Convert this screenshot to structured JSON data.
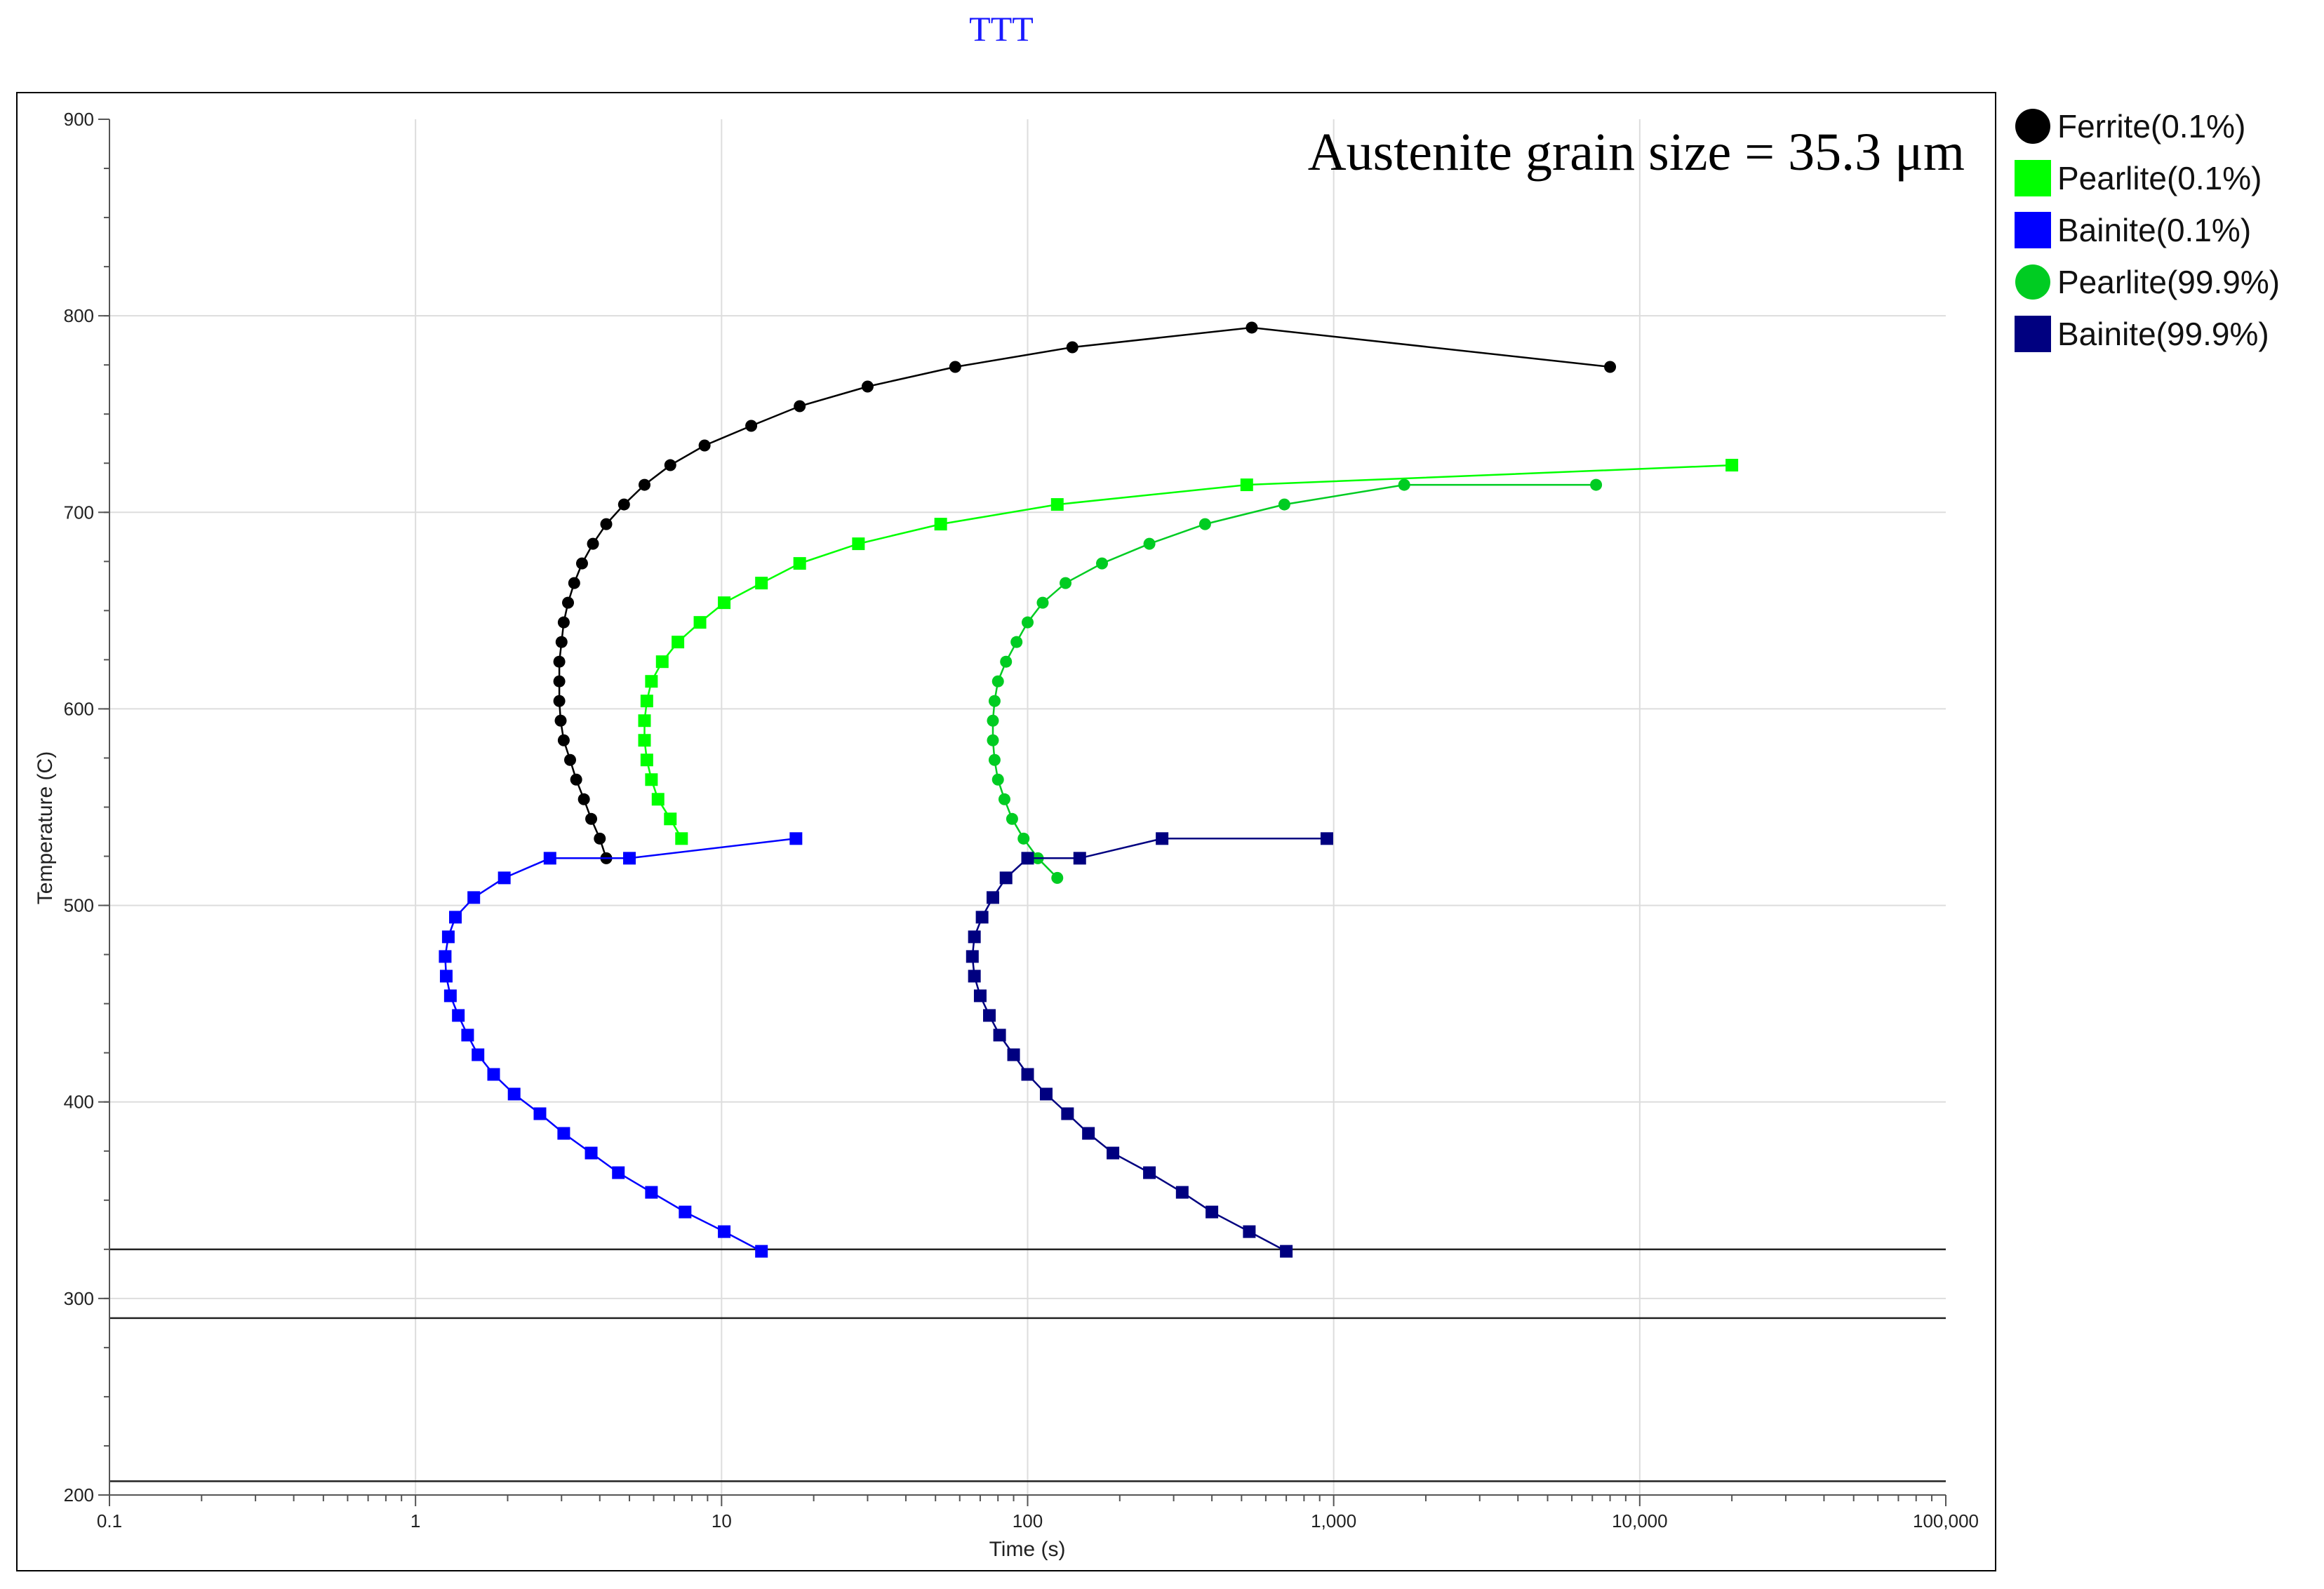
{
  "chart_data": {
    "type": "line",
    "title": "TTT",
    "title_color": "#1a1aff",
    "annotation": "Austenite grain size = 35.3 μm",
    "xlabel": "Time (s)",
    "ylabel": "Temperature (C)",
    "x_scale": "log",
    "xlim": [
      0.1,
      100000
    ],
    "ylim": [
      200,
      900
    ],
    "x_ticks": [
      0.1,
      1,
      10,
      100,
      1000,
      10000,
      100000
    ],
    "x_tick_labels": [
      "0.1",
      "1",
      "10",
      "100",
      "1,000",
      "10,000",
      "100,000"
    ],
    "y_ticks": [
      200,
      300,
      400,
      500,
      600,
      700,
      800,
      900
    ],
    "y_tick_labels": [
      "200",
      "300",
      "400",
      "500",
      "600",
      "700",
      "800",
      "900"
    ],
    "grid": true,
    "legend_position": "outside-right",
    "horizontal_lines": [
      325,
      290,
      207
    ],
    "series": [
      {
        "name": "Ferrite(0.1%)",
        "color": "#000000",
        "marker": "circle",
        "x": [
          4.2,
          4.0,
          3.75,
          3.55,
          3.35,
          3.2,
          3.05,
          2.98,
          2.95,
          2.95,
          2.95,
          3.0,
          3.05,
          3.15,
          3.3,
          3.5,
          3.8,
          4.2,
          4.8,
          5.6,
          6.8,
          8.8,
          12.5,
          18,
          30,
          58,
          140,
          540,
          8000
        ],
        "y": [
          524,
          534,
          544,
          554,
          564,
          574,
          584,
          594,
          604,
          614,
          624,
          634,
          644,
          654,
          664,
          674,
          684,
          694,
          704,
          714,
          724,
          734,
          744,
          754,
          764,
          774,
          784,
          794,
          774
        ]
      },
      {
        "name": "Pearlite(0.1%)",
        "color": "#00ff00",
        "marker": "square",
        "x": [
          7.4,
          6.8,
          6.2,
          5.9,
          5.7,
          5.6,
          5.6,
          5.7,
          5.9,
          6.4,
          7.2,
          8.5,
          10.2,
          13.5,
          18,
          28,
          52,
          125,
          520,
          20000
        ],
        "y": [
          534,
          544,
          554,
          564,
          574,
          584,
          594,
          604,
          614,
          624,
          634,
          644,
          654,
          664,
          674,
          684,
          694,
          704,
          714,
          724
        ]
      },
      {
        "name": "Bainite(0.1%)",
        "color": "#0000ff",
        "marker": "square",
        "x": [
          13.5,
          10.2,
          7.6,
          5.9,
          4.6,
          3.75,
          3.05,
          2.55,
          2.1,
          1.8,
          1.6,
          1.48,
          1.38,
          1.3,
          1.26,
          1.25,
          1.28,
          1.35,
          1.55,
          1.95,
          2.75,
          5.0,
          17.5
        ],
        "y": [
          324,
          334,
          344,
          354,
          364,
          374,
          384,
          394,
          404,
          414,
          424,
          434,
          444,
          454,
          464,
          474,
          484,
          494,
          504,
          514,
          524,
          524,
          534
        ]
      },
      {
        "name": "Pearlite(99.9%)",
        "color": "#00cc22",
        "marker": "circle",
        "x": [
          125,
          108,
          97,
          89,
          84,
          80,
          78,
          77,
          77,
          78,
          80,
          85,
          92,
          100,
          112,
          133,
          175,
          250,
          380,
          690,
          1700,
          7200
        ],
        "y": [
          514,
          524,
          534,
          544,
          554,
          564,
          574,
          584,
          594,
          604,
          614,
          624,
          634,
          644,
          654,
          664,
          674,
          684,
          694,
          704,
          714,
          714
        ]
      },
      {
        "name": "Bainite(99.9%)",
        "color": "#000080",
        "marker": "square",
        "x": [
          700,
          530,
          400,
          320,
          250,
          190,
          158,
          135,
          115,
          100,
          90,
          81,
          75,
          70,
          67,
          66,
          67,
          71,
          77,
          85,
          100,
          148,
          275,
          950
        ],
        "y": [
          324,
          334,
          344,
          354,
          364,
          374,
          384,
          394,
          404,
          414,
          424,
          434,
          444,
          454,
          464,
          474,
          484,
          494,
          504,
          514,
          524,
          524,
          534,
          534
        ]
      }
    ]
  }
}
